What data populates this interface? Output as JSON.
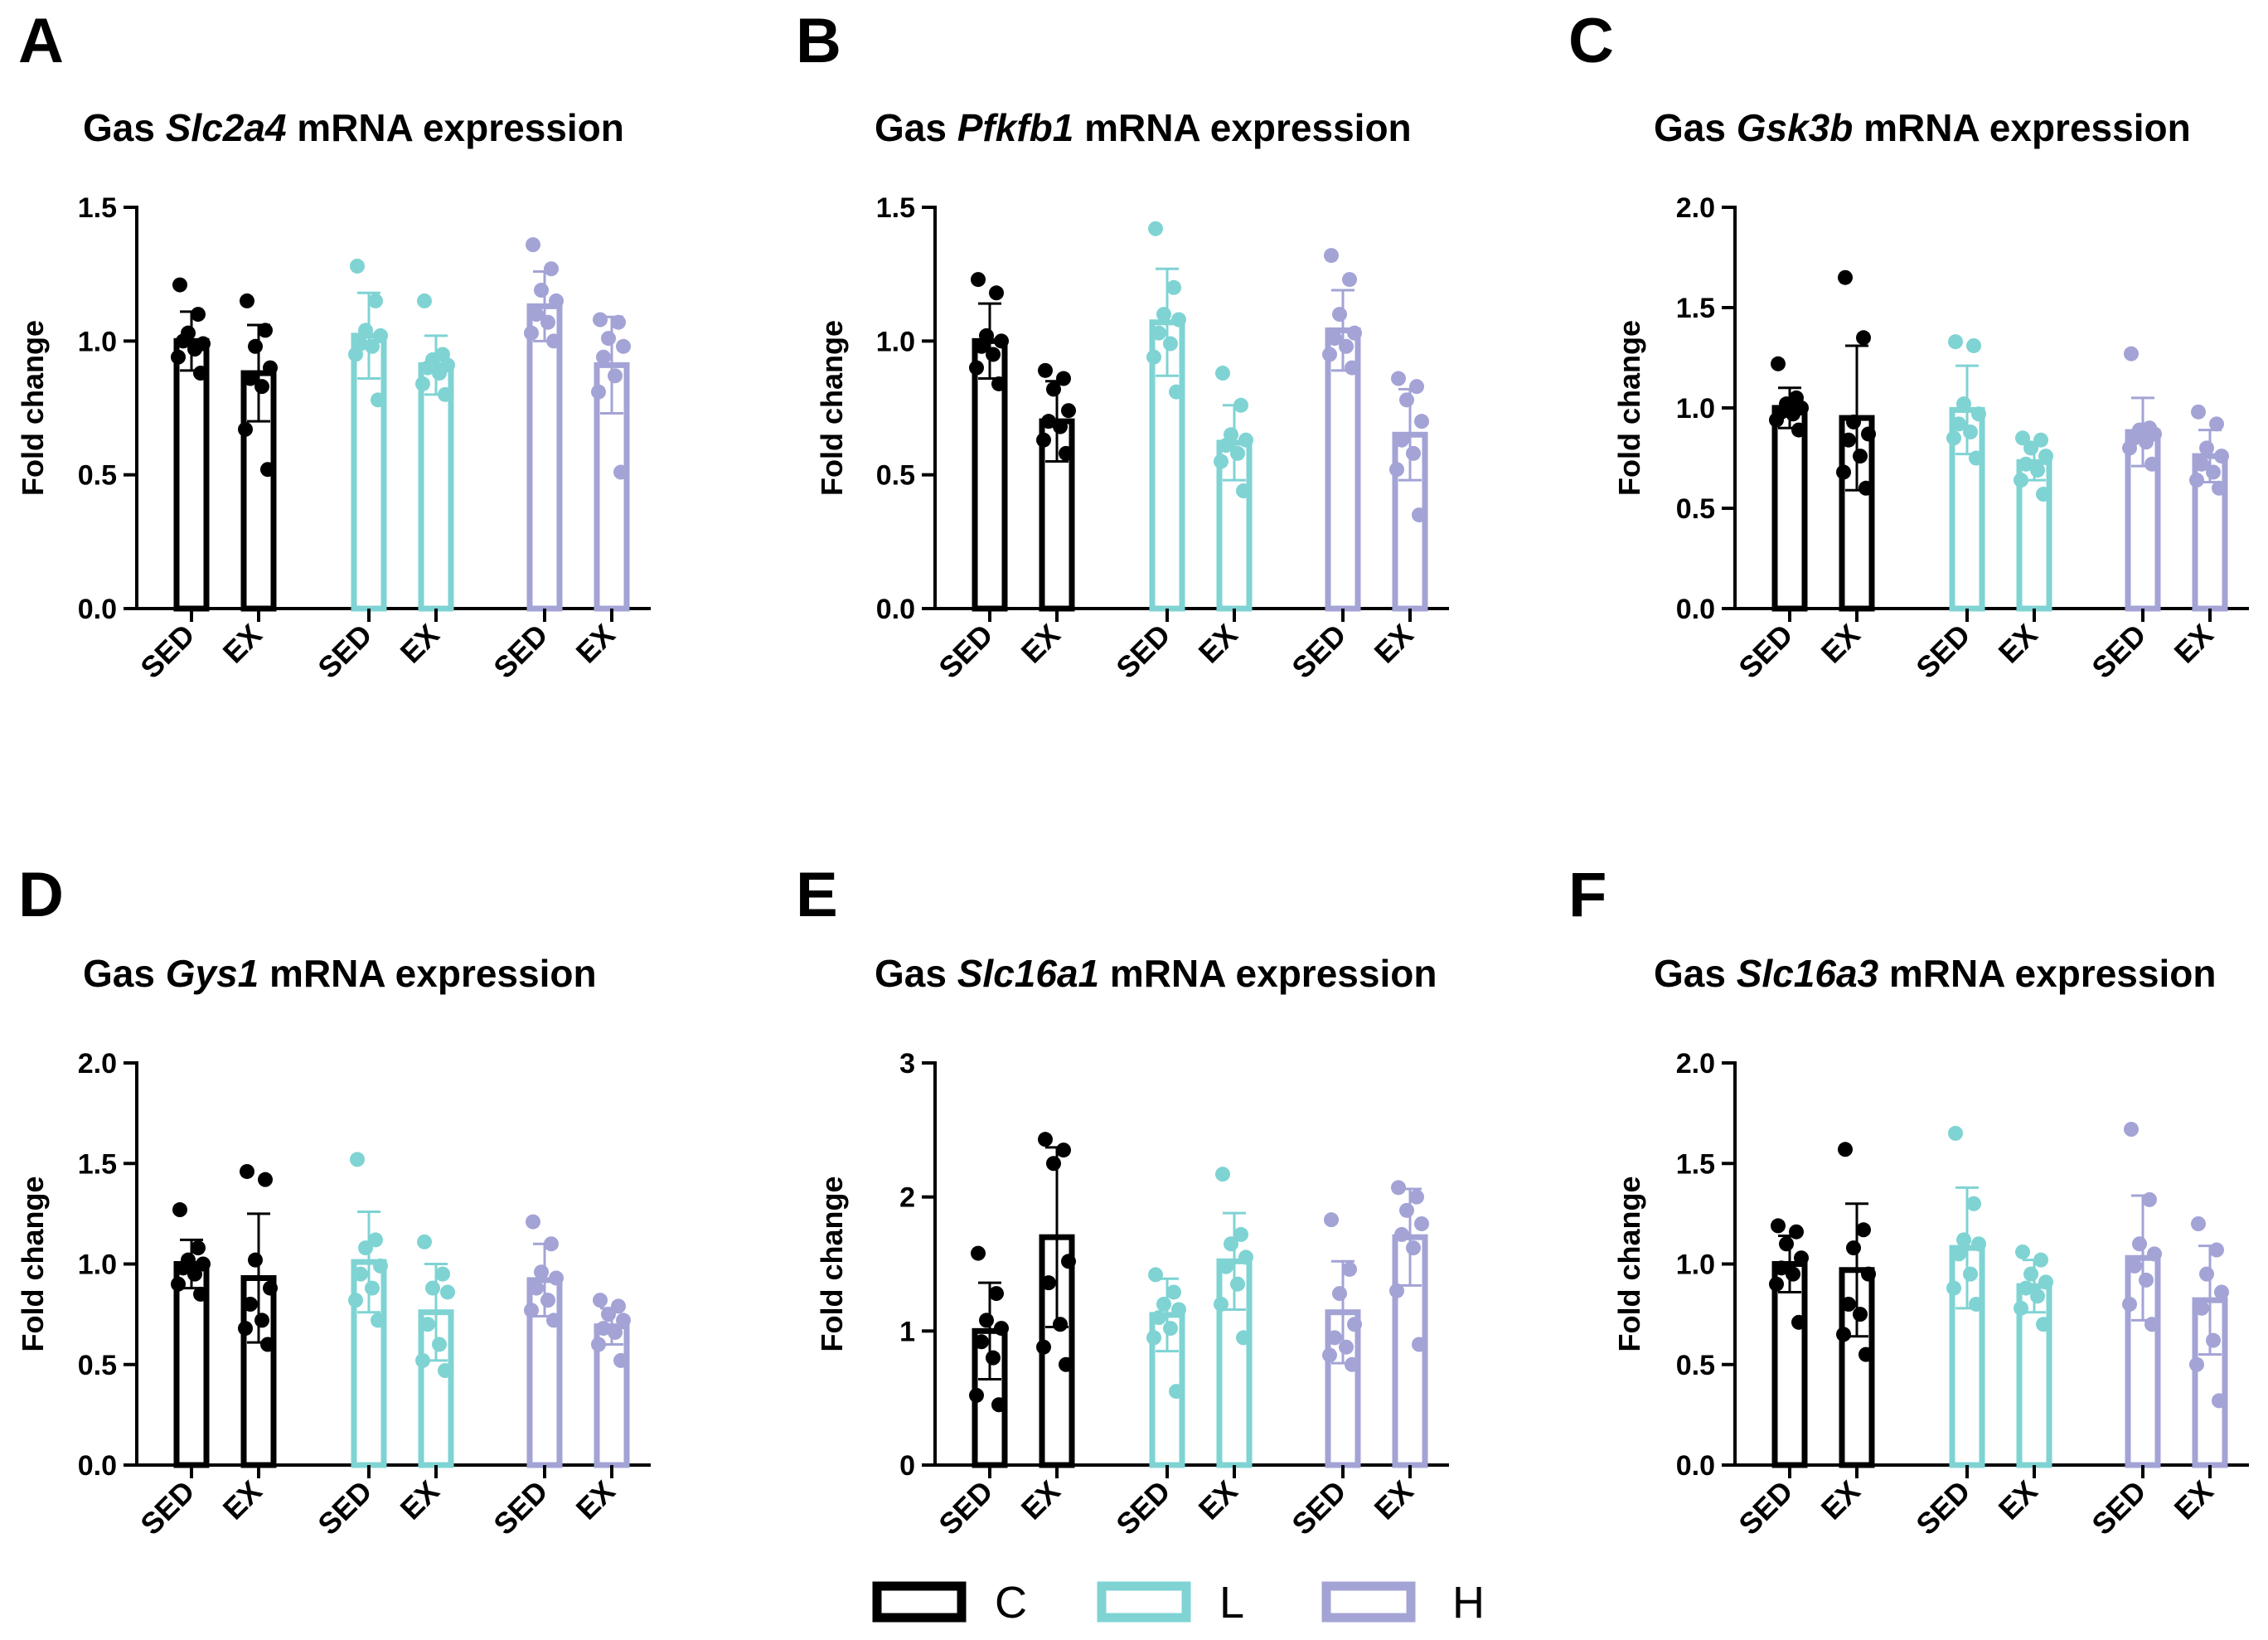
{
  "colors": {
    "C": "#000000",
    "L": "#7fd3d3",
    "H": "#a3a3d6"
  },
  "legend": [
    {
      "key": "C",
      "label": "C"
    },
    {
      "key": "L",
      "label": "L"
    },
    {
      "key": "H",
      "label": "H"
    }
  ],
  "chart_data": [
    {
      "type": "bar",
      "panel_letter": "A",
      "title_prefix": "Gas ",
      "title_gene": "Slc2a4",
      "title_suffix": " mRNA expression",
      "ylabel": "Fold change",
      "ylim": [
        0,
        1.5
      ],
      "yticks": [
        0,
        0.5,
        1.0,
        1.5
      ],
      "ytick_labels": [
        "0.0",
        "0.5",
        "1.0",
        "1.5"
      ],
      "categories": [
        "SED",
        "EX",
        "SED",
        "EX",
        "SED",
        "EX"
      ],
      "bars": [
        {
          "group": "C",
          "mean": 1.0,
          "sd": 0.11,
          "points": [
            1.21,
            1.1,
            1.03,
            0.99,
            1.0,
            0.97,
            0.94,
            0.88
          ]
        },
        {
          "group": "C",
          "mean": 0.88,
          "sd": 0.18,
          "points": [
            1.15,
            1.04,
            0.98,
            0.9,
            0.86,
            0.83,
            0.67,
            0.52
          ]
        },
        {
          "group": "L",
          "mean": 1.02,
          "sd": 0.16,
          "points": [
            1.28,
            1.15,
            1.04,
            1.02,
            0.99,
            0.98,
            0.95,
            0.78
          ]
        },
        {
          "group": "L",
          "mean": 0.91,
          "sd": 0.11,
          "points": [
            1.15,
            0.95,
            0.93,
            0.91,
            0.9,
            0.88,
            0.84,
            0.8
          ]
        },
        {
          "group": "H",
          "mean": 1.13,
          "sd": 0.13,
          "points": [
            1.36,
            1.27,
            1.19,
            1.15,
            1.1,
            1.07,
            1.03,
            1.0
          ]
        },
        {
          "group": "H",
          "mean": 0.91,
          "sd": 0.18,
          "points": [
            1.08,
            1.07,
            1.01,
            0.98,
            0.94,
            0.87,
            0.81,
            0.51
          ]
        }
      ]
    },
    {
      "type": "bar",
      "panel_letter": "B",
      "title_prefix": "Gas ",
      "title_gene": "Pfkfb1",
      "title_suffix": " mRNA expression",
      "ylabel": "Fold change",
      "ylim": [
        0,
        1.5
      ],
      "yticks": [
        0,
        0.5,
        1.0,
        1.5
      ],
      "ytick_labels": [
        "0.0",
        "0.5",
        "1.0",
        "1.5"
      ],
      "categories": [
        "SED",
        "EX",
        "SED",
        "EX",
        "SED",
        "EX"
      ],
      "bars": [
        {
          "group": "C",
          "mean": 1.0,
          "sd": 0.14,
          "points": [
            1.23,
            1.18,
            1.02,
            1.0,
            0.98,
            0.95,
            0.9,
            0.84
          ]
        },
        {
          "group": "C",
          "mean": 0.7,
          "sd": 0.15,
          "points": [
            0.89,
            0.86,
            0.82,
            0.74,
            0.7,
            0.68,
            0.63,
            0.58
          ]
        },
        {
          "group": "L",
          "mean": 1.07,
          "sd": 0.2,
          "points": [
            1.42,
            1.2,
            1.1,
            1.08,
            1.03,
            0.99,
            0.94,
            0.81
          ]
        },
        {
          "group": "L",
          "mean": 0.62,
          "sd": 0.14,
          "points": [
            0.88,
            0.76,
            0.65,
            0.63,
            0.61,
            0.58,
            0.55,
            0.44
          ]
        },
        {
          "group": "H",
          "mean": 1.04,
          "sd": 0.15,
          "points": [
            1.32,
            1.23,
            1.1,
            1.03,
            1.01,
            0.98,
            0.95,
            0.9
          ]
        },
        {
          "group": "H",
          "mean": 0.65,
          "sd": 0.17,
          "points": [
            0.86,
            0.83,
            0.78,
            0.7,
            0.63,
            0.58,
            0.52,
            0.35
          ]
        }
      ]
    },
    {
      "type": "bar",
      "panel_letter": "C",
      "title_prefix": "Gas ",
      "title_gene": "Gsk3b",
      "title_suffix": " mRNA expression",
      "ylabel": "Fold change",
      "ylim": [
        0,
        2.0
      ],
      "yticks": [
        0,
        0.5,
        1.0,
        1.5,
        2.0
      ],
      "ytick_labels": [
        "0.0",
        "0.5",
        "1.0",
        "1.5",
        "2.0"
      ],
      "categories": [
        "SED",
        "EX",
        "SED",
        "EX",
        "SED",
        "EX"
      ],
      "bars": [
        {
          "group": "C",
          "mean": 1.0,
          "sd": 0.1,
          "points": [
            1.22,
            1.05,
            1.02,
            1.0,
            0.98,
            0.97,
            0.94,
            0.89
          ]
        },
        {
          "group": "C",
          "mean": 0.95,
          "sd": 0.36,
          "points": [
            1.65,
            1.35,
            0.93,
            0.87,
            0.84,
            0.76,
            0.68,
            0.6
          ]
        },
        {
          "group": "L",
          "mean": 0.99,
          "sd": 0.22,
          "points": [
            1.33,
            1.31,
            1.02,
            0.97,
            0.92,
            0.88,
            0.85,
            0.75
          ]
        },
        {
          "group": "L",
          "mean": 0.73,
          "sd": 0.09,
          "points": [
            0.85,
            0.84,
            0.8,
            0.76,
            0.72,
            0.69,
            0.64,
            0.57
          ]
        },
        {
          "group": "H",
          "mean": 0.88,
          "sd": 0.17,
          "points": [
            1.27,
            0.9,
            0.89,
            0.87,
            0.85,
            0.83,
            0.8,
            0.72
          ]
        },
        {
          "group": "H",
          "mean": 0.76,
          "sd": 0.13,
          "points": [
            0.98,
            0.92,
            0.8,
            0.76,
            0.72,
            0.68,
            0.64,
            0.6
          ]
        }
      ]
    },
    {
      "type": "bar",
      "panel_letter": "D",
      "title_prefix": "Gas ",
      "title_gene": "Gys1",
      "title_suffix": " mRNA expression",
      "ylabel": "Fold change",
      "ylim": [
        0,
        2.0
      ],
      "yticks": [
        0,
        0.5,
        1.0,
        1.5,
        2.0
      ],
      "ytick_labels": [
        "0.0",
        "0.5",
        "1.0",
        "1.5",
        "2.0"
      ],
      "categories": [
        "SED",
        "EX",
        "SED",
        "EX",
        "SED",
        "EX"
      ],
      "bars": [
        {
          "group": "C",
          "mean": 1.0,
          "sd": 0.12,
          "points": [
            1.27,
            1.08,
            1.02,
            1.0,
            0.98,
            0.95,
            0.9,
            0.85
          ]
        },
        {
          "group": "C",
          "mean": 0.93,
          "sd": 0.32,
          "points": [
            1.46,
            1.42,
            1.02,
            0.88,
            0.8,
            0.72,
            0.68,
            0.6
          ]
        },
        {
          "group": "L",
          "mean": 1.01,
          "sd": 0.25,
          "points": [
            1.52,
            1.12,
            1.08,
            0.99,
            0.95,
            0.88,
            0.82,
            0.72
          ]
        },
        {
          "group": "L",
          "mean": 0.76,
          "sd": 0.24,
          "points": [
            1.11,
            0.95,
            0.88,
            0.86,
            0.7,
            0.6,
            0.52,
            0.47
          ]
        },
        {
          "group": "H",
          "mean": 0.92,
          "sd": 0.18,
          "points": [
            1.21,
            1.1,
            0.96,
            0.93,
            0.88,
            0.82,
            0.77,
            0.72
          ]
        },
        {
          "group": "H",
          "mean": 0.69,
          "sd": 0.09,
          "points": [
            0.82,
            0.79,
            0.75,
            0.72,
            0.68,
            0.66,
            0.6,
            0.52
          ]
        }
      ]
    },
    {
      "type": "bar",
      "panel_letter": "E",
      "title_prefix": "Gas ",
      "title_gene": "Slc16a1",
      "title_suffix": " mRNA expression",
      "ylabel": "Fold change",
      "ylim": [
        0,
        3
      ],
      "yticks": [
        0,
        1,
        2,
        3
      ],
      "ytick_labels": [
        "0",
        "1",
        "2",
        "3"
      ],
      "categories": [
        "SED",
        "EX",
        "SED",
        "EX",
        "SED",
        "EX"
      ],
      "bars": [
        {
          "group": "C",
          "mean": 1.0,
          "sd": 0.36,
          "points": [
            1.58,
            1.28,
            1.08,
            1.02,
            0.92,
            0.8,
            0.52,
            0.45
          ]
        },
        {
          "group": "C",
          "mean": 1.7,
          "sd": 0.67,
          "points": [
            2.43,
            2.35,
            2.25,
            1.52,
            1.36,
            1.05,
            0.88,
            0.75
          ]
        },
        {
          "group": "L",
          "mean": 1.12,
          "sd": 0.27,
          "points": [
            1.42,
            1.29,
            1.2,
            1.16,
            1.1,
            1.02,
            0.95,
            0.55
          ]
        },
        {
          "group": "L",
          "mean": 1.52,
          "sd": 0.36,
          "points": [
            2.17,
            1.72,
            1.65,
            1.55,
            1.48,
            1.35,
            1.2,
            0.95
          ]
        },
        {
          "group": "H",
          "mean": 1.14,
          "sd": 0.38,
          "points": [
            1.83,
            1.46,
            1.28,
            1.05,
            0.95,
            0.88,
            0.82,
            0.75
          ]
        },
        {
          "group": "H",
          "mean": 1.7,
          "sd": 0.36,
          "points": [
            2.07,
            2.0,
            1.9,
            1.8,
            1.72,
            1.62,
            1.3,
            0.9
          ]
        }
      ]
    },
    {
      "type": "bar",
      "panel_letter": "F",
      "title_prefix": "Gas ",
      "title_gene": "Slc16a3",
      "title_suffix": " mRNA expression",
      "ylabel": "Fold change",
      "ylim": [
        0,
        2.0
      ],
      "yticks": [
        0,
        0.5,
        1.0,
        1.5,
        2.0
      ],
      "ytick_labels": [
        "0.0",
        "0.5",
        "1.0",
        "1.5",
        "2.0"
      ],
      "categories": [
        "SED",
        "EX",
        "SED",
        "EX",
        "SED",
        "EX"
      ],
      "bars": [
        {
          "group": "C",
          "mean": 1.0,
          "sd": 0.14,
          "points": [
            1.19,
            1.16,
            1.1,
            1.03,
            0.98,
            0.95,
            0.9,
            0.71
          ]
        },
        {
          "group": "C",
          "mean": 0.97,
          "sd": 0.33,
          "points": [
            1.57,
            1.17,
            1.08,
            0.95,
            0.8,
            0.75,
            0.65,
            0.55
          ]
        },
        {
          "group": "L",
          "mean": 1.08,
          "sd": 0.3,
          "points": [
            1.65,
            1.3,
            1.12,
            1.1,
            1.05,
            0.95,
            0.88,
            0.8
          ]
        },
        {
          "group": "L",
          "mean": 0.89,
          "sd": 0.13,
          "points": [
            1.06,
            1.02,
            0.95,
            0.91,
            0.88,
            0.84,
            0.78,
            0.7
          ]
        },
        {
          "group": "H",
          "mean": 1.03,
          "sd": 0.31,
          "points": [
            1.67,
            1.32,
            1.1,
            1.05,
            0.99,
            0.92,
            0.8,
            0.7
          ]
        },
        {
          "group": "H",
          "mean": 0.82,
          "sd": 0.27,
          "points": [
            1.2,
            1.07,
            0.95,
            0.86,
            0.78,
            0.62,
            0.5,
            0.32
          ]
        }
      ]
    }
  ]
}
